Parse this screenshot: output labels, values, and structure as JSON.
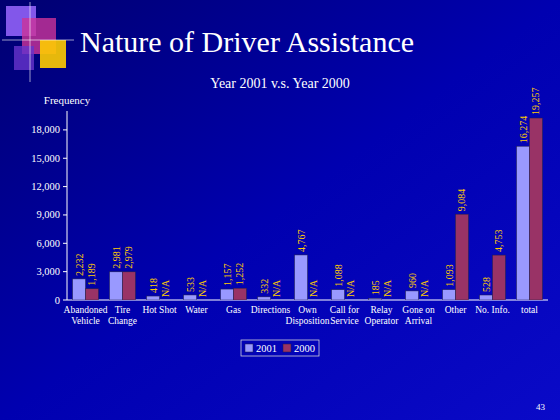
{
  "slide_title": "Nature of Driver Assistance",
  "page_number": "43",
  "chart_data": {
    "type": "bar",
    "title": "Year 2001 v.s. Year 2000",
    "y_label": "Frequency",
    "categories": [
      "Abandoned Vehicle",
      "Tire Change",
      "Hot Shot",
      "Water",
      "Gas",
      "Directions",
      "Own Disposition",
      "Call for Service",
      "Relay Operator",
      "Gone on Arrival",
      "Other",
      "No. Info.",
      "total"
    ],
    "series": [
      {
        "name": "2001",
        "color": "#9999ff",
        "values": [
          2232,
          2981,
          418,
          533,
          1157,
          332,
          4767,
          1088,
          185,
          960,
          1093,
          528,
          16274
        ],
        "value_labels": [
          "2,232",
          "2,981",
          "418",
          "533",
          "1,157",
          "332",
          "4,767",
          "1,088",
          "185",
          "960",
          "1,093",
          "528",
          "16,274"
        ]
      },
      {
        "name": "2000",
        "color": "#993366",
        "values": [
          1189,
          2979,
          null,
          null,
          1252,
          null,
          null,
          null,
          null,
          null,
          9084,
          4753,
          19257
        ],
        "value_labels": [
          "1,189",
          "2,979",
          "N/A",
          "N/A",
          "1,252",
          "N/A",
          "N/A",
          "N/A",
          "N/A",
          "N/A",
          "9,084",
          "4,753",
          "19,257"
        ]
      }
    ],
    "ylim": [
      0,
      20000
    ],
    "yticks": [
      0,
      {
        "value": 3000,
        "label": "3,000"
      },
      {
        "value": 6000,
        "label": "6,000"
      },
      {
        "value": 9000,
        "label": "9,000"
      },
      {
        "value": 12000,
        "label": "12,000"
      },
      {
        "value": 15000,
        "label": "15,000"
      },
      {
        "value": 18000,
        "label": "18,000"
      }
    ],
    "grid": false,
    "legend": "bottom",
    "data_labels": true
  }
}
